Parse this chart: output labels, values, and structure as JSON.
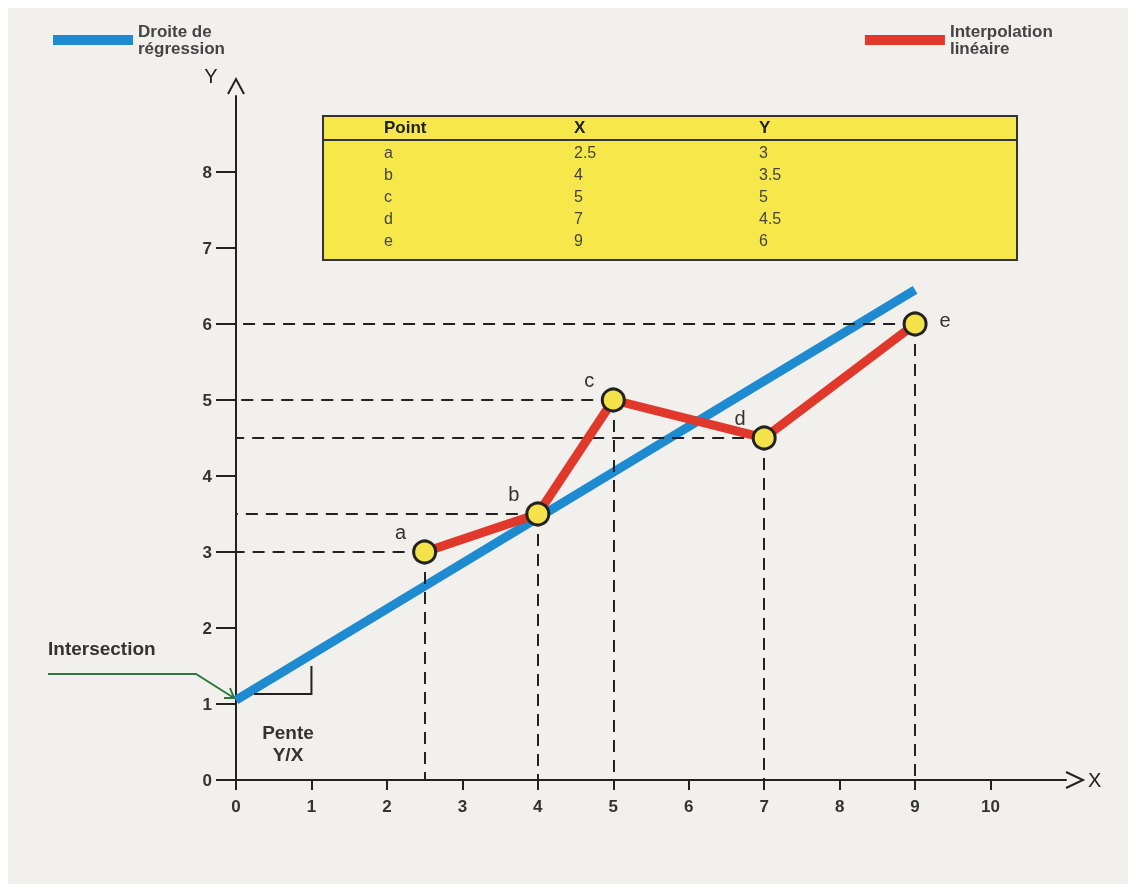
{
  "chart_data": {
    "type": "line",
    "xlabel": "X",
    "ylabel": "Y",
    "xlim": [
      0,
      11
    ],
    "xticks": [
      0,
      1,
      2,
      3,
      4,
      5,
      6,
      7,
      8,
      9,
      10
    ],
    "ylim": [
      0,
      9
    ],
    "yticks": [
      0,
      1,
      2,
      3,
      4,
      5,
      6,
      7,
      8
    ],
    "legend": "top",
    "series": [
      {
        "name": "Droite de régression",
        "color": "#1e8ad0",
        "x": [
          0,
          9
        ],
        "values": [
          1.05,
          6.45
        ],
        "marker": "none"
      },
      {
        "name": "Interpolation linéaire",
        "color": "#e0392b",
        "x": [
          2.5,
          4,
          5,
          7,
          9
        ],
        "values": [
          3,
          3.5,
          5,
          4.5,
          6
        ],
        "marker": "circle"
      }
    ],
    "annotations": [
      "Point",
      "X",
      "Y",
      "a",
      "2.5",
      "3",
      "b",
      "4",
      "3.5",
      "c",
      "5",
      "5",
      "d",
      "7",
      "4.5",
      "e",
      "9",
      "6",
      {
        "text": "a",
        "x": 2.5,
        "y": 3
      },
      {
        "text": "b",
        "x": 4,
        "y": 3.5
      },
      {
        "text": "c",
        "x": 5,
        "y": 5
      },
      {
        "text": "d",
        "x": 7,
        "y": 4.5
      },
      {
        "text": "e",
        "x": 9,
        "y": 6
      },
      {
        "text": "Intersection",
        "x": 0,
        "y": 1.05
      },
      "Pente Y/X"
    ]
  }
}
